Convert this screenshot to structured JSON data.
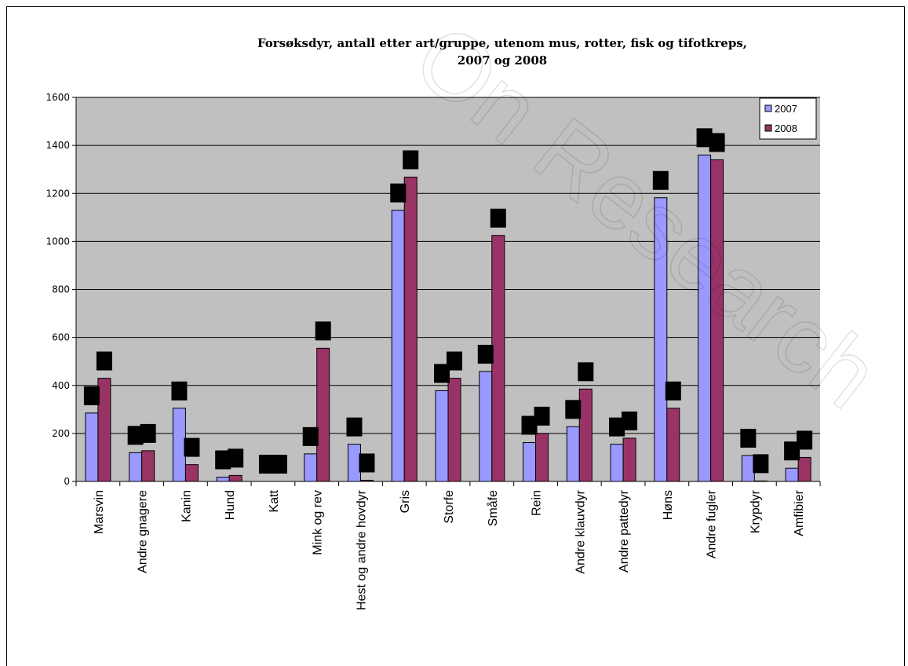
{
  "chart_data": {
    "type": "bar",
    "title_line1": "Forsøksdyr, antall etter art/gruppe, utenom mus, rotter, fisk og tifotkreps,",
    "title_line2": "2007 og 2008",
    "categories": [
      "Marsvin",
      "Andre gnagere",
      "Kanin",
      "Hund",
      "Katt",
      "Mink og rev",
      "Hest og andre hovdyr",
      "Gris",
      "Storfe",
      "Småfe",
      "Rein",
      "Andre klauvdyr",
      "Andre pattedyr",
      "Høns",
      "Andre fugler",
      "Krypdyr",
      "Amfibier"
    ],
    "series": [
      {
        "name": "2007",
        "color": "#9999ff",
        "values": [
          285,
          120,
          305,
          18,
          0,
          115,
          155,
          1130,
          378,
          458,
          162,
          228,
          155,
          1182,
          1360,
          108,
          55
        ]
      },
      {
        "name": "2008",
        "color": "#993366",
        "values": [
          430,
          128,
          70,
          25,
          0,
          555,
          5,
          1268,
          430,
          1025,
          200,
          385,
          180,
          305,
          1340,
          2,
          100
        ]
      }
    ],
    "yticks": [
      "0",
      "200",
      "400",
      "600",
      "800",
      "1000",
      "1200",
      "1400",
      "1600"
    ],
    "ylim": [
      0,
      1600
    ],
    "grid": true,
    "legend_position": "top-right",
    "plot_background": "#c0c0c0"
  }
}
